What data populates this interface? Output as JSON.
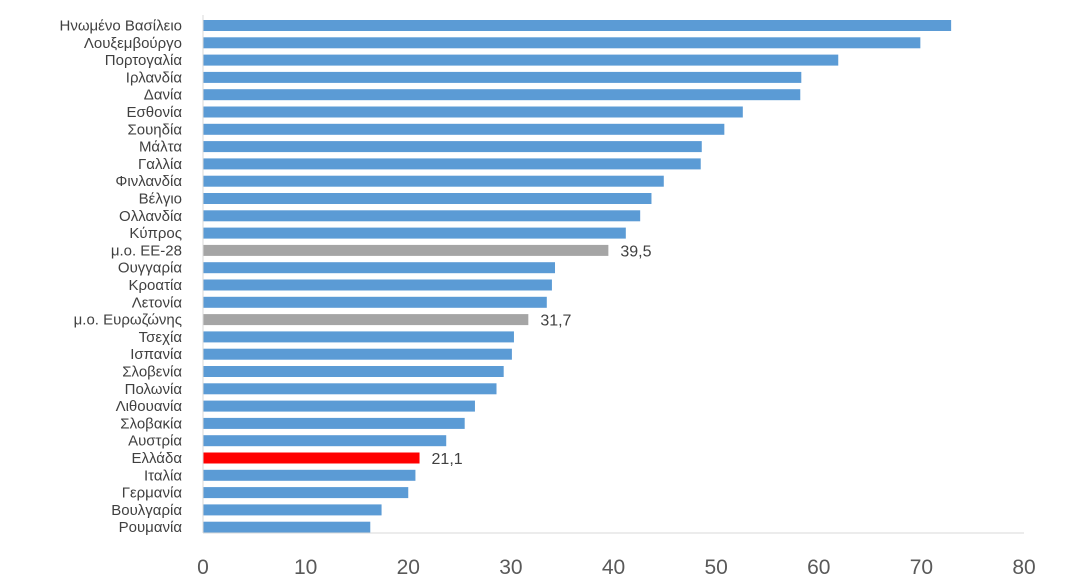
{
  "chart_data": {
    "type": "bar",
    "orientation": "horizontal",
    "title": "",
    "xlabel": "",
    "ylabel": "",
    "xlim": [
      0,
      80
    ],
    "x_ticks": [
      0,
      10,
      20,
      30,
      40,
      50,
      60,
      70,
      80
    ],
    "grid": false,
    "legend": "none",
    "colors": {
      "default": "#5b9bd5",
      "average": "#a5a5a5",
      "highlight": "#ff0000",
      "axis": "#d9d9d9",
      "label_text": "#404040",
      "tick_text": "#595959"
    },
    "bars": [
      {
        "category": "Ηνωμένο Βασίλειο",
        "value": 72.9,
        "kind": "default"
      },
      {
        "category": "Λουξεμβούργο",
        "value": 69.9,
        "kind": "default"
      },
      {
        "category": "Πορτογαλία",
        "value": 61.9,
        "kind": "default"
      },
      {
        "category": "Ιρλανδία",
        "value": 58.3,
        "kind": "default"
      },
      {
        "category": "Δανία",
        "value": 58.2,
        "kind": "default"
      },
      {
        "category": "Εσθονία",
        "value": 52.6,
        "kind": "default"
      },
      {
        "category": "Σουηδία",
        "value": 50.8,
        "kind": "default"
      },
      {
        "category": "Μάλτα",
        "value": 48.6,
        "kind": "default"
      },
      {
        "category": "Γαλλία",
        "value": 48.5,
        "kind": "default"
      },
      {
        "category": "Φινλανδία",
        "value": 44.9,
        "kind": "default"
      },
      {
        "category": "Βέλγιο",
        "value": 43.7,
        "kind": "default"
      },
      {
        "category": "Ολλανδία",
        "value": 42.6,
        "kind": "default"
      },
      {
        "category": "Κύπρος",
        "value": 41.2,
        "kind": "default"
      },
      {
        "category": "μ.ο. ΕΕ-28",
        "value": 39.5,
        "kind": "average",
        "label": "39,5"
      },
      {
        "category": "Ουγγαρία",
        "value": 34.3,
        "kind": "default"
      },
      {
        "category": "Κροατία",
        "value": 34.0,
        "kind": "default"
      },
      {
        "category": "Λετονία",
        "value": 33.5,
        "kind": "default"
      },
      {
        "category": "μ.ο. Ευρωζώνης",
        "value": 31.7,
        "kind": "average",
        "label": "31,7"
      },
      {
        "category": "Τσεχία",
        "value": 30.3,
        "kind": "default"
      },
      {
        "category": "Ισπανία",
        "value": 30.1,
        "kind": "default"
      },
      {
        "category": "Σλοβενία",
        "value": 29.3,
        "kind": "default"
      },
      {
        "category": "Πολωνία",
        "value": 28.6,
        "kind": "default"
      },
      {
        "category": "Λιθουανία",
        "value": 26.5,
        "kind": "default"
      },
      {
        "category": "Σλοβακία",
        "value": 25.5,
        "kind": "default"
      },
      {
        "category": "Αυστρία",
        "value": 23.7,
        "kind": "default"
      },
      {
        "category": "Ελλάδα",
        "value": 21.1,
        "kind": "highlight",
        "label": "21,1"
      },
      {
        "category": "Ιταλία",
        "value": 20.7,
        "kind": "default"
      },
      {
        "category": "Γερμανία",
        "value": 20.0,
        "kind": "default"
      },
      {
        "category": "Βουλγαρία",
        "value": 17.4,
        "kind": "default"
      },
      {
        "category": "Ρουμανία",
        "value": 16.3,
        "kind": "default"
      }
    ]
  }
}
